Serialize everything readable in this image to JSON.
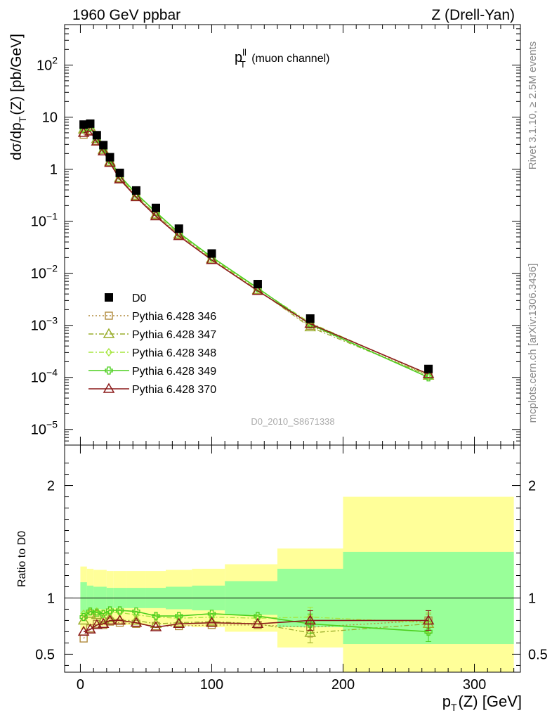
{
  "header": {
    "left": "1960 GeV ppbar",
    "right": "Z (Drell-Yan)"
  },
  "side_labels": {
    "rivet": "Rivet 3.1.10, ≥ 2.5M events",
    "mcplots": "mcplots.cern.ch [arXiv:1306.3436]"
  },
  "colors": {
    "data": "#000000",
    "s346": "#b08a3c",
    "s347": "#9aad2c",
    "s348": "#a6e63e",
    "s349": "#4ccf1e",
    "s370": "#8b1a1a",
    "band_outer": "#ffff99",
    "band_inner": "#99ff99"
  },
  "chart_data": [
    {
      "type": "scatter",
      "title_main": "p",
      "title_sup": "ll",
      "title_sub": "T",
      "title_rest": " (muon channel)",
      "ylabel_main": "dσ/dp",
      "ylabel_sub": "T",
      "ylabel_rest": "(Z) [pb/GeV]",
      "yscale": "log",
      "ylim": [
        5e-06,
        600
      ],
      "xlim": [
        -12,
        335
      ],
      "y_ticks": [
        {
          "value": 1e-05,
          "base": "10",
          "exp": "−5"
        },
        {
          "value": 0.0001,
          "base": "10",
          "exp": "−4"
        },
        {
          "value": 0.001,
          "base": "10",
          "exp": "−3"
        },
        {
          "value": 0.01,
          "base": "10",
          "exp": "−2"
        },
        {
          "value": 0.1,
          "base": "10",
          "exp": "−1"
        },
        {
          "value": 1,
          "base": "1",
          "exp": ""
        },
        {
          "value": 10,
          "base": "10",
          "exp": ""
        },
        {
          "value": 100,
          "base": "10",
          "exp": "2"
        }
      ],
      "watermark": "D0_2010_S8671338",
      "legend_position": "lower-left",
      "x": [
        2.5,
        7.5,
        12.5,
        17.5,
        22.5,
        30,
        42.5,
        57.5,
        75,
        100,
        135,
        175,
        265
      ],
      "series": [
        {
          "name": "D0",
          "key": "data",
          "marker": "filled-square",
          "line": "none",
          "values": [
            7.2,
            7.5,
            4.5,
            2.9,
            1.7,
            0.85,
            0.39,
            0.18,
            0.072,
            0.024,
            0.0062,
            0.00135,
            0.000145
          ]
        },
        {
          "name": "Pythia 6.428 346",
          "key": "s346",
          "marker": "open-square",
          "line": "dotted",
          "values": [
            4.6,
            5.5,
            3.5,
            2.2,
            1.35,
            0.66,
            0.3,
            0.13,
            0.054,
            0.018,
            0.0047,
            0.00098,
            0.00011
          ]
        },
        {
          "name": "Pythia 6.428 347",
          "key": "s347",
          "marker": "open-triangle",
          "line": "dashdot",
          "values": [
            5.8,
            6.4,
            3.8,
            2.35,
            1.4,
            0.68,
            0.31,
            0.135,
            0.056,
            0.019,
            0.0048,
            0.00092,
            0.000108
          ]
        },
        {
          "name": "Pythia 6.428 348",
          "key": "s348",
          "marker": "open-diamond",
          "line": "dashdot",
          "values": [
            6.2,
            6.6,
            4.0,
            2.5,
            1.5,
            0.74,
            0.33,
            0.15,
            0.059,
            0.02,
            0.0051,
            0.00112,
            0.000112
          ]
        },
        {
          "name": "Pythia 6.428 349",
          "key": "s349",
          "marker": "open-cross",
          "line": "solid",
          "values": [
            6.0,
            6.5,
            3.9,
            2.5,
            1.52,
            0.75,
            0.34,
            0.15,
            0.06,
            0.0205,
            0.0052,
            0.00104,
            0.0001
          ]
        },
        {
          "name": "Pythia 6.428 370",
          "key": "s370",
          "marker": "open-triangle",
          "line": "solid",
          "values": [
            5.0,
            5.3,
            3.4,
            2.2,
            1.33,
            0.64,
            0.29,
            0.125,
            0.052,
            0.018,
            0.0046,
            0.00107,
            0.000116
          ]
        }
      ]
    },
    {
      "type": "line",
      "ylabel": "Ratio to D0",
      "xlabel_main": "p",
      "xlabel_sub": "T",
      "xlabel_rest": "(Z) [GeV]",
      "ylim": [
        0.34,
        2.36
      ],
      "xlim": [
        -12,
        335
      ],
      "y_ticks": [
        0.5,
        1,
        2
      ],
      "y_tick_labels": [
        "0.5",
        "1",
        "2"
      ],
      "x_ticks": [
        0,
        100,
        200,
        300
      ],
      "x_tick_labels": [
        "0",
        "100",
        "200",
        "300"
      ],
      "reference_line": 1,
      "bands": {
        "edges": [
          0,
          5,
          10,
          15,
          20,
          25,
          35,
          50,
          65,
          85,
          110,
          150,
          200,
          330
        ],
        "outer_lo": [
          0.72,
          0.74,
          0.75,
          0.75,
          0.76,
          0.76,
          0.76,
          0.76,
          0.75,
          0.74,
          0.7,
          0.56,
          0.33
        ],
        "outer_hi": [
          1.28,
          1.26,
          1.25,
          1.25,
          1.24,
          1.24,
          1.24,
          1.24,
          1.25,
          1.26,
          1.3,
          1.44,
          1.9
        ],
        "inner_lo": [
          0.86,
          0.89,
          0.9,
          0.9,
          0.91,
          0.91,
          0.91,
          0.91,
          0.9,
          0.89,
          0.85,
          0.74,
          0.59
        ],
        "inner_hi": [
          1.14,
          1.11,
          1.1,
          1.1,
          1.09,
          1.09,
          1.09,
          1.09,
          1.1,
          1.11,
          1.15,
          1.26,
          1.41
        ]
      },
      "x": [
        2.5,
        7.5,
        12.5,
        17.5,
        22.5,
        30,
        42.5,
        57.5,
        75,
        100,
        135,
        175,
        265
      ],
      "series": [
        {
          "name": "Pythia 6.428 346",
          "key": "s346",
          "marker": "open-square",
          "line": "dotted",
          "values": [
            0.64,
            0.73,
            0.77,
            0.76,
            0.79,
            0.78,
            0.77,
            0.75,
            0.75,
            0.76,
            0.76,
            0.74,
            0.8
          ]
        },
        {
          "name": "Pythia 6.428 347",
          "key": "s347",
          "marker": "open-triangle",
          "line": "dashdot",
          "values": [
            0.8,
            0.86,
            0.85,
            0.81,
            0.82,
            0.8,
            0.8,
            0.77,
            0.78,
            0.79,
            0.77,
            0.69,
            0.77
          ]
        },
        {
          "name": "Pythia 6.428 348",
          "key": "s348",
          "marker": "open-diamond",
          "line": "dashdot",
          "values": [
            0.86,
            0.88,
            0.88,
            0.86,
            0.87,
            0.87,
            0.85,
            0.83,
            0.82,
            0.83,
            0.82,
            0.83,
            0.78
          ]
        },
        {
          "name": "Pythia 6.428 349",
          "key": "s349",
          "marker": "open-cross",
          "line": "solid",
          "values": [
            0.83,
            0.88,
            0.87,
            0.86,
            0.89,
            0.89,
            0.88,
            0.84,
            0.84,
            0.86,
            0.84,
            0.77,
            0.7
          ]
        },
        {
          "name": "Pythia 6.428 370",
          "key": "s370",
          "marker": "open-triangle",
          "line": "solid",
          "values": [
            0.7,
            0.72,
            0.76,
            0.77,
            0.8,
            0.8,
            0.78,
            0.74,
            0.77,
            0.78,
            0.77,
            0.8,
            0.8
          ]
        }
      ]
    }
  ]
}
